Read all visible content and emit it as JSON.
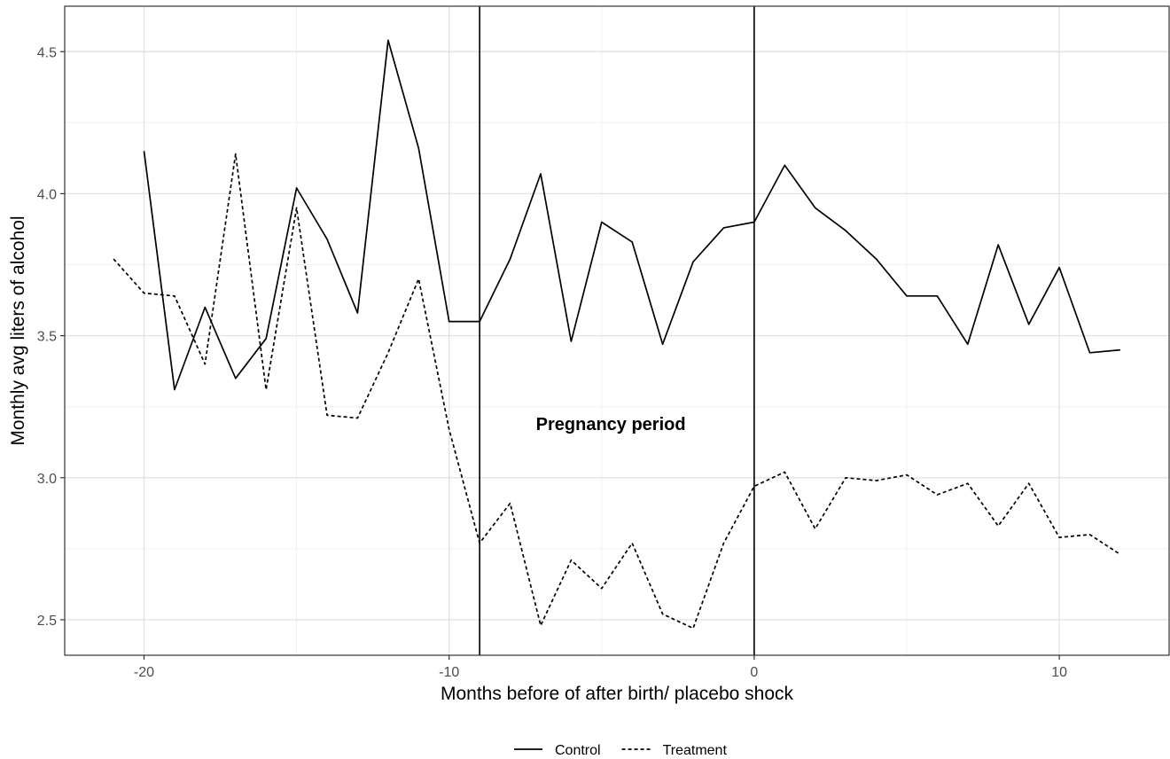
{
  "chart_data": {
    "type": "line",
    "xlabel": "Months before of after birth/ placebo shock",
    "ylabel": "Monthly avg liters of alcohol",
    "xlim": [
      -22.6,
      13.6
    ],
    "ylim": [
      2.375,
      4.66
    ],
    "x_ticks": [
      -20,
      -10,
      0,
      10
    ],
    "x_tick_labels": [
      "-20",
      "-10",
      "0",
      "10"
    ],
    "y_ticks": [
      2.5,
      3.0,
      3.5,
      4.0,
      4.5
    ],
    "y_tick_labels": [
      "2.5",
      "3.0",
      "3.5",
      "4.0",
      "4.5"
    ],
    "grid": true,
    "legend_position": "bottom",
    "vertical_lines": [
      -9,
      0
    ],
    "annotations": [
      {
        "text": "Pregnancy period",
        "x": -4.7,
        "y": 3.19
      }
    ],
    "series": [
      {
        "name": "Control",
        "linestyle": "solid",
        "color": "#000000",
        "x": [
          -20,
          -19,
          -18,
          -17,
          -16,
          -15,
          -14,
          -13,
          -12,
          -11,
          -10,
          -9,
          -8,
          -7,
          -6,
          -5,
          -4,
          -3,
          -2,
          -1,
          0,
          1,
          2,
          3,
          4,
          5,
          6,
          7,
          8,
          9,
          10,
          11,
          12
        ],
        "values": [
          4.15,
          3.31,
          3.6,
          3.35,
          3.49,
          4.02,
          3.84,
          3.58,
          4.54,
          4.16,
          3.55,
          3.55,
          3.77,
          4.07,
          3.48,
          3.9,
          3.83,
          3.47,
          3.76,
          3.88,
          3.9,
          4.1,
          3.95,
          3.87,
          3.77,
          3.64,
          3.64,
          3.47,
          3.82,
          3.54,
          3.74,
          3.44,
          3.45
        ]
      },
      {
        "name": "Treatment",
        "linestyle": "dashed",
        "color": "#000000",
        "x": [
          -21,
          -20,
          -19,
          -18,
          -17,
          -16,
          -15,
          -14,
          -13,
          -12,
          -11,
          -10,
          -9,
          -8,
          -7,
          -6,
          -5,
          -4,
          -3,
          -2,
          -1,
          0,
          1,
          2,
          3,
          4,
          5,
          6,
          7,
          8,
          9,
          10,
          11,
          12
        ],
        "values": [
          3.77,
          3.65,
          3.64,
          3.4,
          4.14,
          3.31,
          3.95,
          3.22,
          3.21,
          3.44,
          3.7,
          3.17,
          2.77,
          2.91,
          2.48,
          2.71,
          2.61,
          2.77,
          2.52,
          2.47,
          2.77,
          2.97,
          3.02,
          2.82,
          3.0,
          2.99,
          3.01,
          2.94,
          2.98,
          2.83,
          2.98,
          2.79,
          2.8,
          2.73
        ]
      }
    ]
  }
}
